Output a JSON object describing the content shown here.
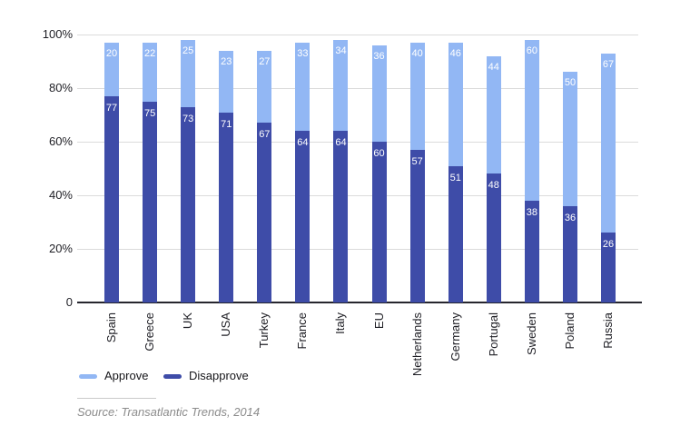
{
  "chart_data": {
    "type": "bar",
    "stacked": true,
    "title": "",
    "xlabel": "",
    "ylabel": "",
    "ylim": [
      0,
      100
    ],
    "grid": true,
    "legend_position": "bottom-left",
    "categories": [
      "Spain",
      "Greece",
      "UK",
      "USA",
      "Turkey",
      "France",
      "Italy",
      "EU",
      "Netherlands",
      "Germany",
      "Portugal",
      "Sweden",
      "Poland",
      "Russia"
    ],
    "series": [
      {
        "name": "Approve",
        "color": "#92b7f4",
        "values": [
          20,
          22,
          25,
          23,
          27,
          33,
          34,
          36,
          40,
          46,
          44,
          60,
          50,
          67
        ]
      },
      {
        "name": "Disapprove",
        "color": "#3e4ca8",
        "values": [
          77,
          75,
          73,
          71,
          67,
          64,
          64,
          60,
          57,
          51,
          48,
          38,
          36,
          26
        ]
      }
    ],
    "yticks": [
      {
        "label": "100%",
        "value": 100
      },
      {
        "label": "80%",
        "value": 80
      },
      {
        "label": "60%",
        "value": 60
      },
      {
        "label": "40%",
        "value": 40
      },
      {
        "label": "20%",
        "value": 20
      },
      {
        "label": "0",
        "value": 0
      }
    ]
  },
  "legend": {
    "approve_label": "Approve",
    "disapprove_label": "Disapprove"
  },
  "source": {
    "text": "Source: Transatlantic Trends, 2014"
  },
  "colors": {
    "approve": "#92b7f4",
    "disapprove": "#3e4ca8",
    "gridline": "#dbdbdb",
    "axis": "#26262e",
    "tick_text": "#1e1e24",
    "bar_label_text": "#ffffff",
    "source_text": "#8b8b8b"
  }
}
